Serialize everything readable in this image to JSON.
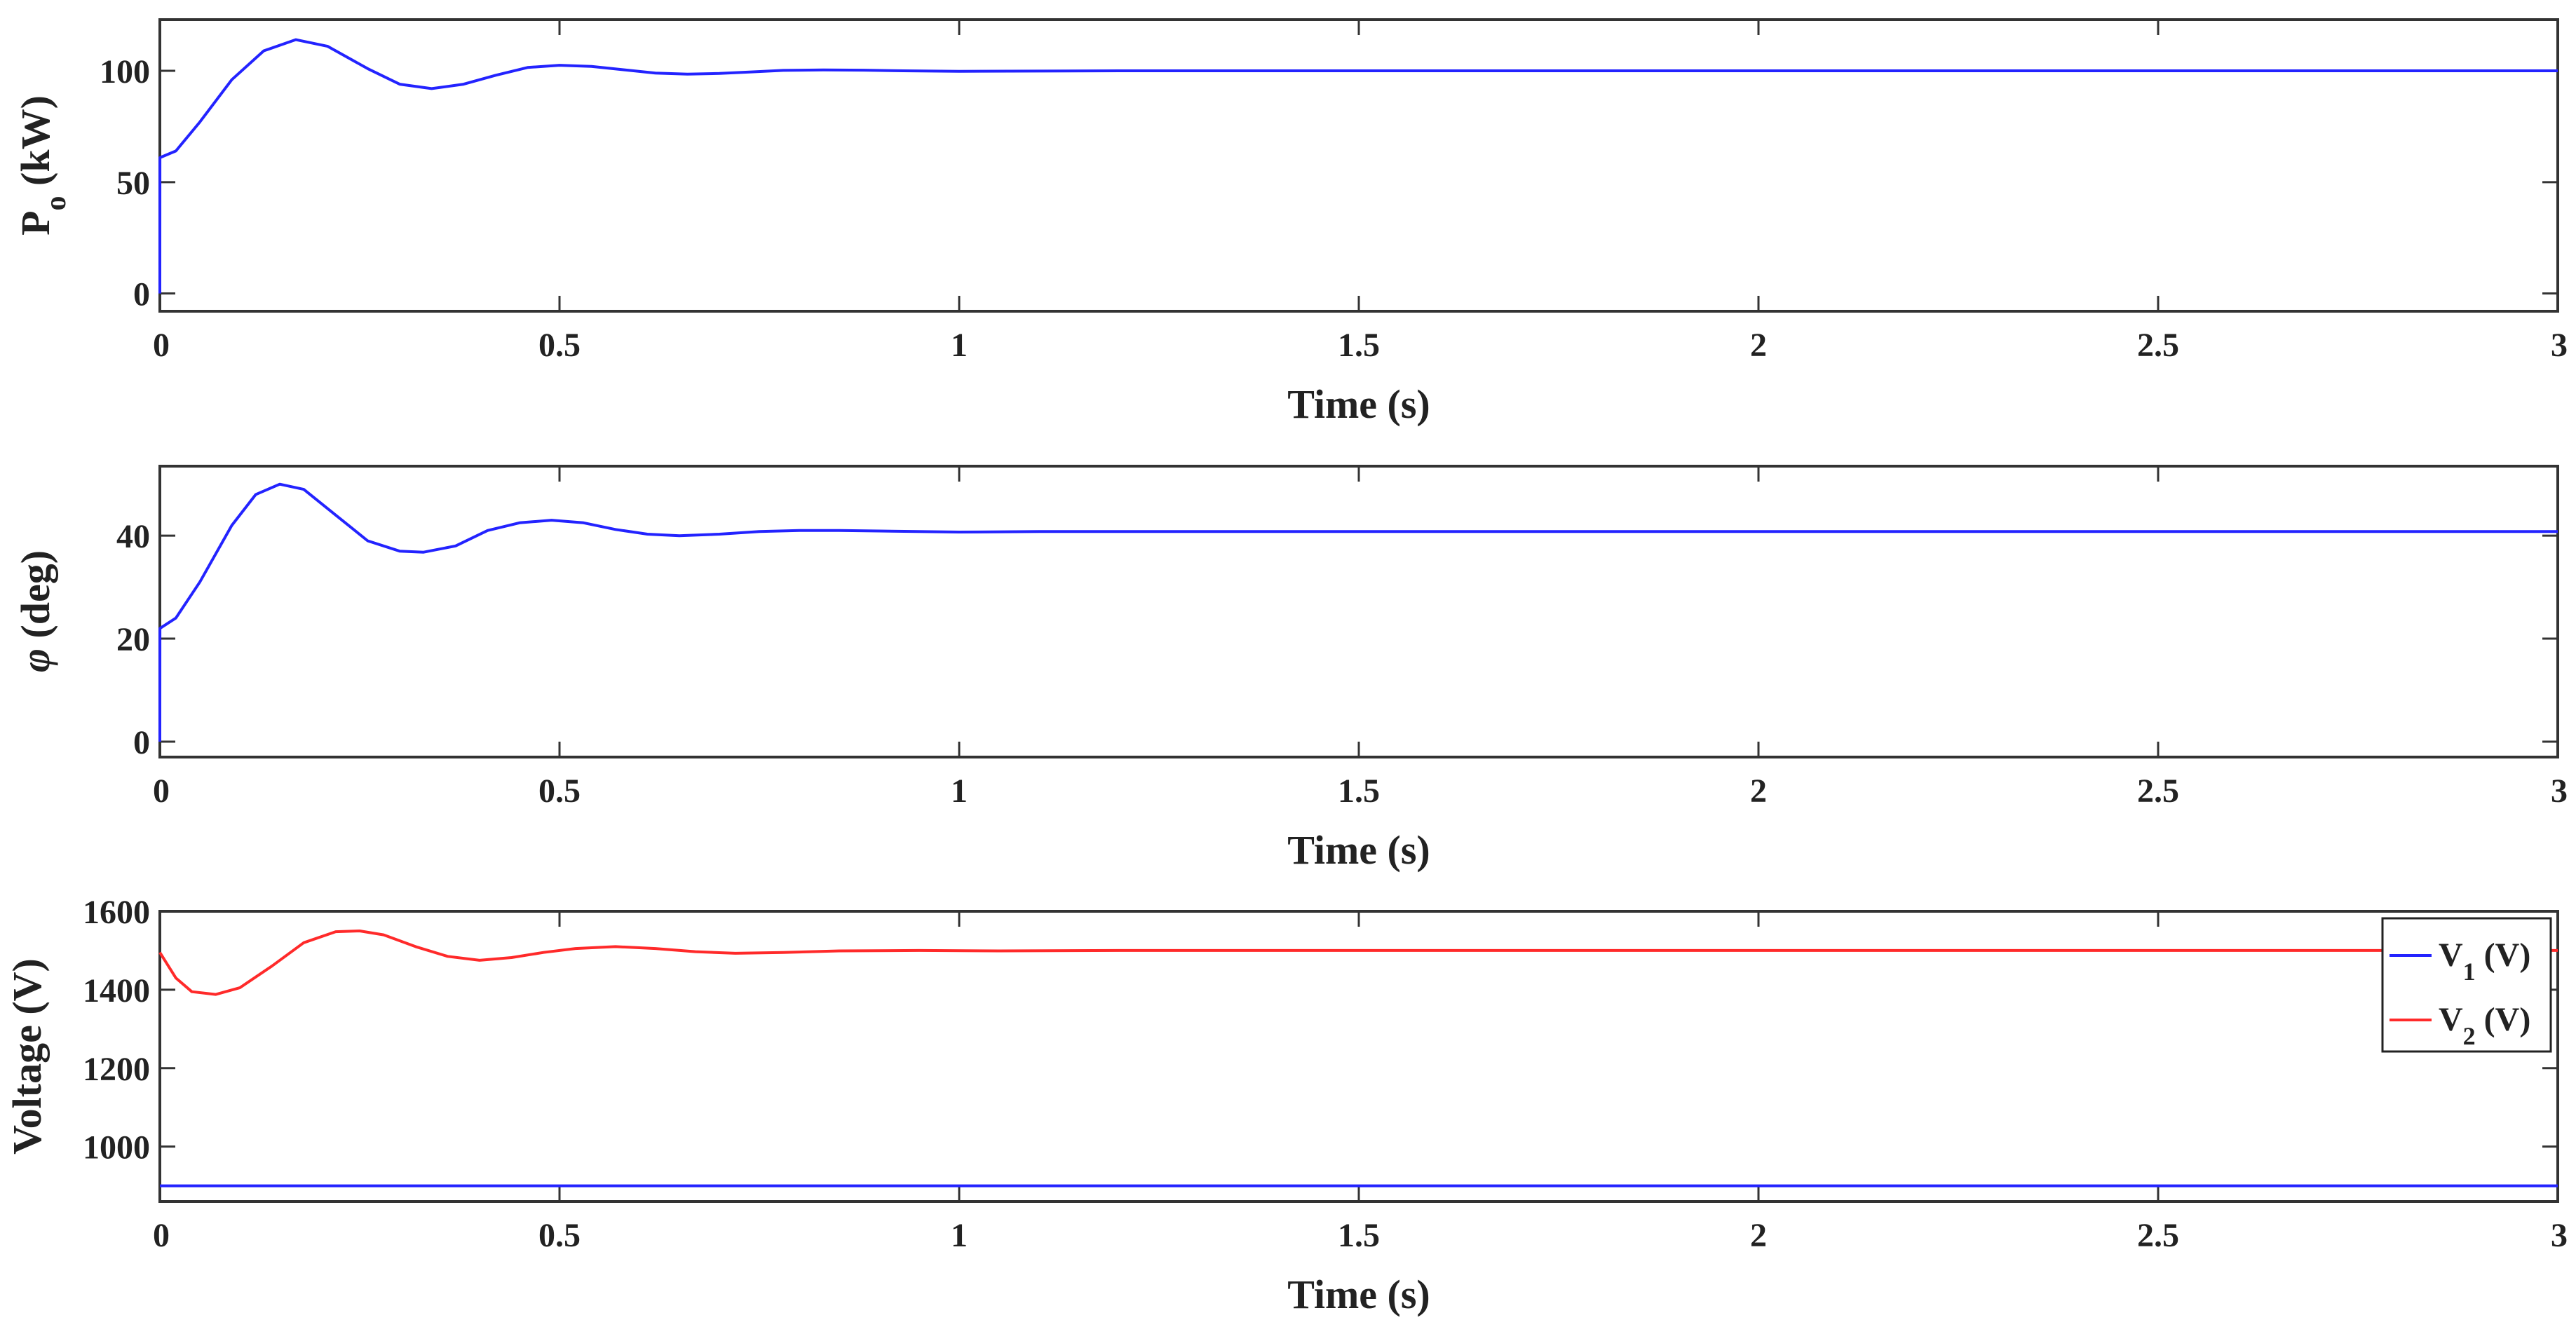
{
  "chart_data": [
    {
      "type": "line",
      "xlabel": "Time (s)",
      "ylabel": "P",
      "ylabel_sub": "o",
      "ylabel_suffix": " (kW)",
      "xlim": [
        0,
        3
      ],
      "ylim": [
        -8,
        123
      ],
      "xticks": [
        0,
        0.5,
        1,
        1.5,
        2,
        2.5,
        3
      ],
      "yticks": [
        0,
        50,
        100
      ],
      "grid": false,
      "series": [
        {
          "color": "#2323ff",
          "x": [
            0,
            0.0001,
            0.02,
            0.05,
            0.09,
            0.13,
            0.17,
            0.21,
            0.26,
            0.3,
            0.34,
            0.38,
            0.42,
            0.46,
            0.5,
            0.54,
            0.58,
            0.62,
            0.66,
            0.7,
            0.74,
            0.78,
            0.83,
            0.88,
            0.93,
            1.0,
            1.1,
            1.2,
            1.4,
            1.6,
            2.0,
            2.5,
            3.0
          ],
          "y": [
            0,
            61,
            64,
            77,
            96,
            109,
            114,
            111,
            101,
            94,
            92,
            94,
            98,
            101.5,
            102.5,
            102,
            100.5,
            99,
            98.5,
            98.8,
            99.5,
            100.2,
            100.4,
            100.3,
            100,
            99.8,
            99.9,
            100,
            100,
            100,
            100,
            100,
            100
          ]
        }
      ]
    },
    {
      "type": "line",
      "xlabel": "Time (s)",
      "ylabel": "φ",
      "ylabel_suffix": " (deg)",
      "xlim": [
        0,
        3
      ],
      "ylim": [
        -3,
        53.5
      ],
      "xticks": [
        0,
        0.5,
        1,
        1.5,
        2,
        2.5,
        3
      ],
      "yticks": [
        0,
        20,
        40
      ],
      "grid": false,
      "series": [
        {
          "color": "#2323ff",
          "x": [
            0,
            0.0001,
            0.02,
            0.05,
            0.09,
            0.12,
            0.15,
            0.18,
            0.22,
            0.26,
            0.3,
            0.33,
            0.37,
            0.41,
            0.45,
            0.49,
            0.53,
            0.57,
            0.61,
            0.65,
            0.7,
            0.75,
            0.8,
            0.85,
            0.9,
            1.0,
            1.1,
            1.2,
            1.4,
            1.6,
            2.0,
            2.5,
            3.0
          ],
          "y": [
            0,
            22,
            24,
            31,
            42,
            48,
            50,
            49,
            44,
            39,
            37,
            36.8,
            38,
            41,
            42.5,
            43,
            42.5,
            41.2,
            40.3,
            40,
            40.3,
            40.8,
            41,
            41,
            40.9,
            40.7,
            40.8,
            40.8,
            40.8,
            40.8,
            40.8,
            40.8,
            40.8
          ]
        }
      ]
    },
    {
      "type": "line",
      "xlabel": "Time (s)",
      "ylabel": "Voltage (V)",
      "xlim": [
        0,
        3
      ],
      "ylim": [
        860,
        1600
      ],
      "xticks": [
        0,
        0.5,
        1,
        1.5,
        2,
        2.5,
        3
      ],
      "yticks": [
        1000,
        1200,
        1400,
        1600
      ],
      "grid": false,
      "legend_position": "top-right",
      "series": [
        {
          "name": "V",
          "name_sub": "1",
          "name_suffix": " (V)",
          "color": "#2323ff",
          "x": [
            0,
            3
          ],
          "y": [
            900,
            900
          ]
        },
        {
          "name": "V",
          "name_sub": "2",
          "name_suffix": " (V)",
          "color": "#ff2a2a",
          "x": [
            0,
            0.02,
            0.04,
            0.07,
            0.1,
            0.14,
            0.18,
            0.22,
            0.25,
            0.28,
            0.32,
            0.36,
            0.4,
            0.44,
            0.48,
            0.52,
            0.57,
            0.62,
            0.67,
            0.72,
            0.78,
            0.85,
            0.95,
            1.05,
            1.2,
            1.5,
            2.0,
            2.5,
            3.0
          ],
          "y": [
            1495,
            1430,
            1395,
            1388,
            1405,
            1460,
            1520,
            1548,
            1550,
            1540,
            1510,
            1485,
            1475,
            1482,
            1495,
            1505,
            1510,
            1505,
            1497,
            1493,
            1495,
            1499,
            1500,
            1499,
            1500,
            1500,
            1500,
            1500,
            1500
          ]
        }
      ]
    }
  ]
}
